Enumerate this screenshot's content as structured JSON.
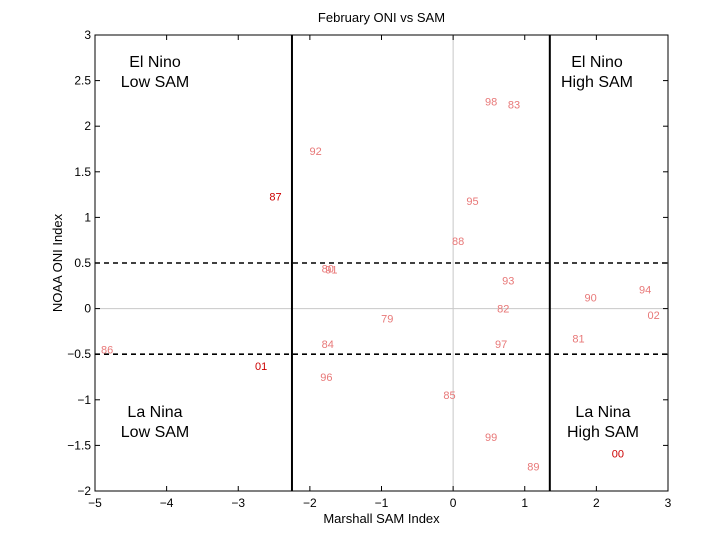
{
  "chart_data": {
    "type": "scatter",
    "title": "February ONI vs SAM",
    "xlabel": "Marshall SAM Index",
    "ylabel": "NOAA ONI Index",
    "xlim": [
      -5,
      3
    ],
    "ylim": [
      -2,
      3
    ],
    "xticks": [
      -5,
      -4,
      -3,
      -2,
      -1,
      0,
      1,
      2,
      3
    ],
    "yticks": [
      -2,
      -1.5,
      -1,
      -0.5,
      0,
      0.5,
      1,
      1.5,
      2,
      2.5,
      3
    ],
    "thresholds": {
      "x_vertical_lines": [
        -2.25,
        1.35
      ],
      "y_dashed_lines": [
        0.5,
        -0.5
      ]
    },
    "quadrant_labels": [
      {
        "line1": "El Nino",
        "line2": "Low SAM",
        "anchor": "top-left"
      },
      {
        "line1": "El Nino",
        "line2": "High SAM",
        "anchor": "top-right"
      },
      {
        "line1": "La Nina",
        "line2": "Low SAM",
        "anchor": "bottom-left"
      },
      {
        "line1": "La Nina",
        "line2": "High SAM",
        "anchor": "bottom-right"
      }
    ],
    "points": [
      {
        "label": "98",
        "x": 0.53,
        "y": 2.27,
        "emphasis": false
      },
      {
        "label": "83",
        "x": 0.85,
        "y": 2.24,
        "emphasis": false
      },
      {
        "label": "92",
        "x": -1.92,
        "y": 1.73,
        "emphasis": false
      },
      {
        "label": "87",
        "x": -2.48,
        "y": 1.23,
        "emphasis": true
      },
      {
        "label": "95",
        "x": 0.27,
        "y": 1.18,
        "emphasis": false
      },
      {
        "label": "88",
        "x": 0.07,
        "y": 0.74,
        "emphasis": false
      },
      {
        "label": "80",
        "x": -1.75,
        "y": 0.44,
        "emphasis": false
      },
      {
        "label": "91",
        "x": -1.7,
        "y": 0.43,
        "emphasis": false
      },
      {
        "label": "93",
        "x": 0.77,
        "y": 0.31,
        "emphasis": false
      },
      {
        "label": "94",
        "x": 2.68,
        "y": 0.21,
        "emphasis": false
      },
      {
        "label": "90",
        "x": 1.92,
        "y": 0.12,
        "emphasis": false
      },
      {
        "label": "82",
        "x": 0.7,
        "y": 0.0,
        "emphasis": false
      },
      {
        "label": "02",
        "x": 2.8,
        "y": -0.07,
        "emphasis": false
      },
      {
        "label": "79",
        "x": -0.92,
        "y": -0.11,
        "emphasis": false
      },
      {
        "label": "81",
        "x": 1.75,
        "y": -0.33,
        "emphasis": false
      },
      {
        "label": "84",
        "x": -1.75,
        "y": -0.39,
        "emphasis": false
      },
      {
        "label": "97",
        "x": 0.67,
        "y": -0.39,
        "emphasis": false
      },
      {
        "label": "86",
        "x": -4.83,
        "y": -0.45,
        "emphasis": false
      },
      {
        "label": "01",
        "x": -2.68,
        "y": -0.63,
        "emphasis": true
      },
      {
        "label": "96",
        "x": -1.77,
        "y": -0.75,
        "emphasis": false
      },
      {
        "label": "85",
        "x": -0.05,
        "y": -0.95,
        "emphasis": false
      },
      {
        "label": "99",
        "x": 0.53,
        "y": -1.41,
        "emphasis": false
      },
      {
        "label": "00",
        "x": 2.3,
        "y": -1.59,
        "emphasis": true
      },
      {
        "label": "89",
        "x": 1.12,
        "y": -1.73,
        "emphasis": false
      }
    ],
    "colors": {
      "point": "#e87878",
      "point_emphasis": "#cc0000",
      "axes": "#000000",
      "zero_line": "#c8c8c8"
    }
  }
}
